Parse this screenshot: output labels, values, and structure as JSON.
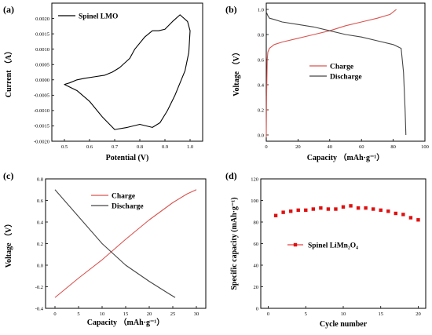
{
  "chart_data": [
    {
      "panel": "(a)",
      "type": "line",
      "xlabel": "Potential (V)",
      "ylabel": "Current （A）",
      "xlim": [
        0.45,
        1.05
      ],
      "ylim": [
        -0.002,
        0.0025
      ],
      "xticks": [
        0.5,
        0.6,
        0.7,
        0.8,
        0.9,
        1.0
      ],
      "xtick_labels": [
        "0.5",
        "0.6",
        "0.7",
        "0.8",
        "0.9",
        "1.0"
      ],
      "yticks": [
        -0.002,
        -0.0015,
        -0.001,
        -0.0005,
        0,
        0.0005,
        0.001,
        0.0015,
        0.002
      ],
      "ytick_labels": [
        "-0.0020",
        "-0.0015",
        "-0.0010",
        "-0.0005",
        "0.0000",
        "0.0005",
        "0.0010",
        "0.0015",
        "0.0020"
      ],
      "legend_position": "top-left",
      "series": [
        {
          "name": "Spinel LMO",
          "color": "#000000",
          "closed": true,
          "x": [
            0.5,
            0.55,
            0.6,
            0.65,
            0.7,
            0.75,
            0.8,
            0.85,
            0.88,
            0.91,
            0.94,
            0.96,
            0.98,
            0.995,
            1.0,
            0.99,
            0.96,
            0.93,
            0.9,
            0.875,
            0.85,
            0.82,
            0.78,
            0.76,
            0.72,
            0.69,
            0.66,
            0.62,
            0.58,
            0.55,
            0.52,
            0.5
          ],
          "y": [
            -0.00015,
            -0.00035,
            -0.0007,
            -0.0012,
            -0.00162,
            -0.00155,
            -0.00145,
            -0.00155,
            -0.0014,
            -0.001,
            -0.0005,
            -0.0001,
            0.0003,
            0.0009,
            0.0016,
            0.0019,
            0.00212,
            0.0019,
            0.00165,
            0.0016,
            0.0016,
            0.0014,
            0.001,
            0.0007,
            0.0004,
            0.00025,
            0.00015,
            0.0001,
            5e-05,
            0.0,
            -0.0001,
            -0.00015
          ]
        }
      ]
    },
    {
      "panel": "(b)",
      "type": "line",
      "xlabel": "Capacity （mAh·g⁻¹）",
      "ylabel": "Voltage （V）",
      "xlim": [
        0,
        100
      ],
      "ylim": [
        -0.05,
        1.05
      ],
      "xticks": [
        0,
        20,
        40,
        60,
        80,
        100
      ],
      "xtick_labels": [
        "0",
        "20",
        "40",
        "60",
        "80",
        "100"
      ],
      "yticks": [
        0.0,
        0.2,
        0.4,
        0.6,
        0.8,
        1.0
      ],
      "ytick_labels": [
        "0.0",
        "0.2",
        "0.4",
        "0.6",
        "0.8",
        "1.0"
      ],
      "legend_position": "center",
      "series": [
        {
          "name": "Charge",
          "color": "#d9534f",
          "x": [
            0,
            0.2,
            0.6,
            1.0,
            2,
            5,
            10,
            20,
            30,
            40,
            50,
            60,
            70,
            78,
            82
          ],
          "y": [
            -0.02,
            0.3,
            0.6,
            0.66,
            0.69,
            0.72,
            0.74,
            0.77,
            0.8,
            0.83,
            0.87,
            0.9,
            0.93,
            0.96,
            1.0
          ],
          "label_key": "charge"
        },
        {
          "name": "Discharge",
          "color": "#444444",
          "x": [
            0,
            1,
            2,
            5,
            10,
            20,
            30,
            40,
            50,
            60,
            70,
            80,
            85,
            86.5,
            87.5,
            88
          ],
          "y": [
            0.98,
            0.95,
            0.93,
            0.92,
            0.9,
            0.88,
            0.86,
            0.83,
            0.8,
            0.78,
            0.75,
            0.72,
            0.69,
            0.5,
            0.2,
            0.0
          ],
          "label_key": "discharge"
        }
      ]
    },
    {
      "panel": "(c)",
      "type": "line",
      "xlabel": "Capacity （mAh·g⁻¹）",
      "ylabel": "Voltage （V）",
      "xlim": [
        -2,
        32
      ],
      "ylim": [
        -0.4,
        0.8
      ],
      "xticks": [
        0,
        5,
        10,
        15,
        20,
        25,
        30
      ],
      "xtick_labels": [
        "0",
        "5",
        "10",
        "15",
        "20",
        "25",
        "30"
      ],
      "yticks": [
        -0.4,
        -0.2,
        0.0,
        0.2,
        0.4,
        0.6,
        0.8
      ],
      "ytick_labels": [
        "-0.4",
        "-0.2",
        "0.0",
        "0.2",
        "0.4",
        "0.6",
        "0.8"
      ],
      "legend_position": "top-center",
      "series": [
        {
          "name": "Charge",
          "color": "#d9534f",
          "x": [
            0,
            5,
            10,
            15,
            20,
            25,
            28,
            30
          ],
          "y": [
            -0.3,
            -0.12,
            0.05,
            0.24,
            0.42,
            0.58,
            0.66,
            0.7
          ]
        },
        {
          "name": "Discharge",
          "color": "#444444",
          "x": [
            0,
            5,
            10,
            15,
            20,
            24,
            25.5
          ],
          "y": [
            0.7,
            0.45,
            0.2,
            0.0,
            -0.15,
            -0.26,
            -0.3
          ]
        }
      ]
    },
    {
      "panel": "(d)",
      "type": "scatter",
      "xlabel": "Cycle number",
      "ylabel": "Specific capacity (mAh·g⁻¹)",
      "xlim": [
        -1,
        21
      ],
      "ylim": [
        0,
        120
      ],
      "xticks": [
        0,
        5,
        10,
        15,
        20
      ],
      "xtick_labels": [
        "0",
        "5",
        "10",
        "15",
        "20"
      ],
      "yticks": [
        0,
        20,
        40,
        60,
        80,
        100,
        120
      ],
      "ytick_labels": [
        "0",
        "20",
        "40",
        "60",
        "80",
        "100",
        "120"
      ],
      "legend_position": "center",
      "series": [
        {
          "name": "Spinel LiMn₂O₄",
          "color": "#e01010",
          "x": [
            1,
            2,
            3,
            4,
            5,
            6,
            7,
            8,
            9,
            10,
            11,
            12,
            13,
            14,
            15,
            16,
            17,
            18,
            19,
            20
          ],
          "y": [
            86,
            89,
            90,
            91,
            91,
            92,
            93,
            92,
            92,
            94,
            95,
            93,
            93,
            92,
            91,
            90,
            88,
            87,
            84,
            82
          ]
        }
      ]
    }
  ]
}
